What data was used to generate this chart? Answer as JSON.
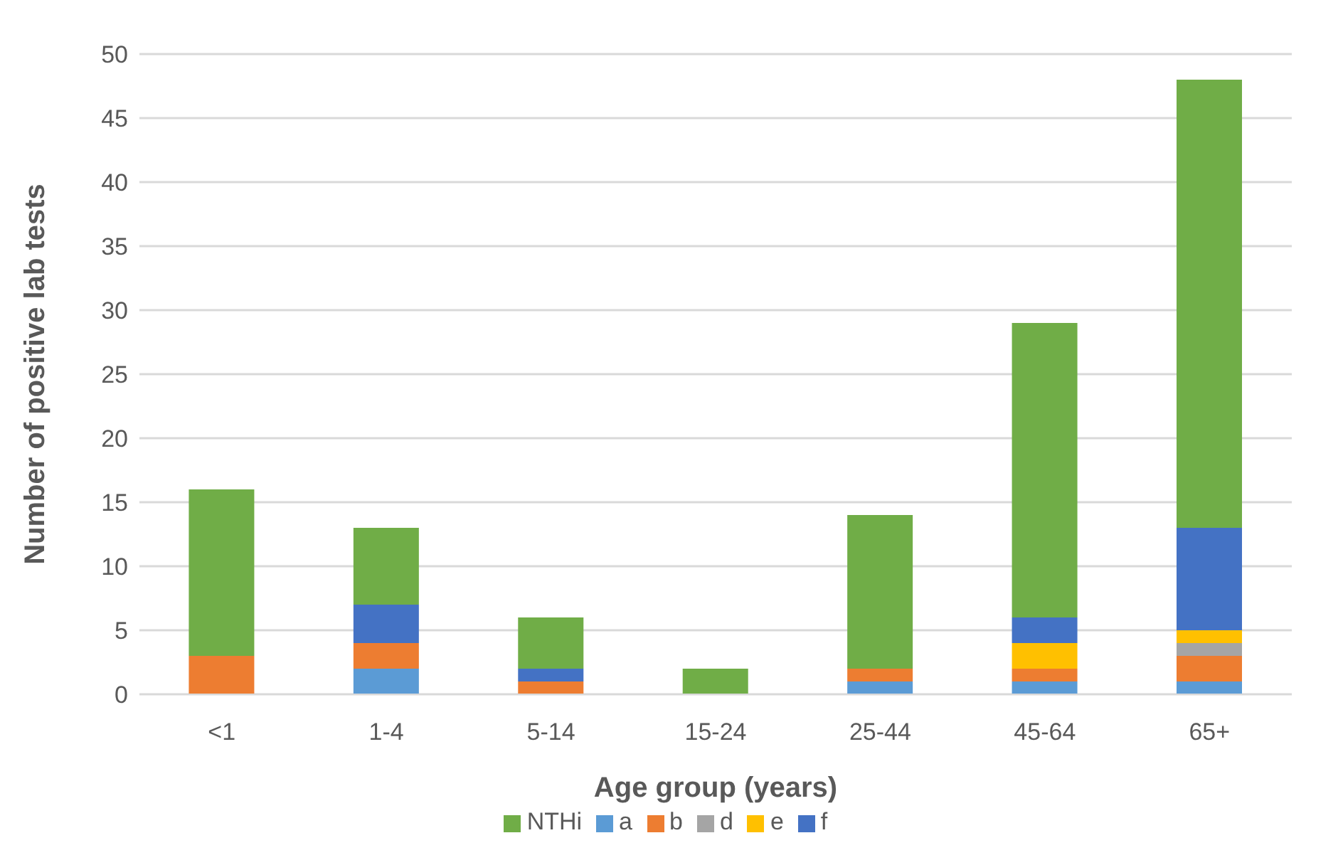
{
  "chart_data": {
    "type": "bar",
    "stacked": true,
    "xlabel": "Age group (years)",
    "ylabel": "Number of positive lab tests",
    "categories": [
      "<1",
      "1-4",
      "5-14",
      "15-24",
      "25-44",
      "45-64",
      "65+"
    ],
    "series": [
      {
        "name": "a",
        "color": "#5b9bd5",
        "values": [
          0,
          2,
          0,
          0,
          1,
          1,
          1
        ]
      },
      {
        "name": "b",
        "color": "#ed7d31",
        "values": [
          3,
          2,
          1,
          0,
          1,
          1,
          2
        ]
      },
      {
        "name": "d",
        "color": "#a5a5a5",
        "values": [
          0,
          0,
          0,
          0,
          0,
          0,
          1
        ]
      },
      {
        "name": "e",
        "color": "#ffc000",
        "values": [
          0,
          0,
          0,
          0,
          0,
          2,
          1
        ]
      },
      {
        "name": "f",
        "color": "#4472c4",
        "values": [
          0,
          3,
          1,
          0,
          0,
          2,
          8
        ]
      },
      {
        "name": "NTHi",
        "color": "#70ad47",
        "values": [
          13,
          6,
          4,
          2,
          12,
          23,
          35
        ]
      }
    ],
    "ylim": [
      0,
      50
    ],
    "yticks": [
      0,
      5,
      10,
      15,
      20,
      25,
      30,
      35,
      40,
      45,
      50
    ],
    "grid": "y",
    "legend": "bottom"
  }
}
